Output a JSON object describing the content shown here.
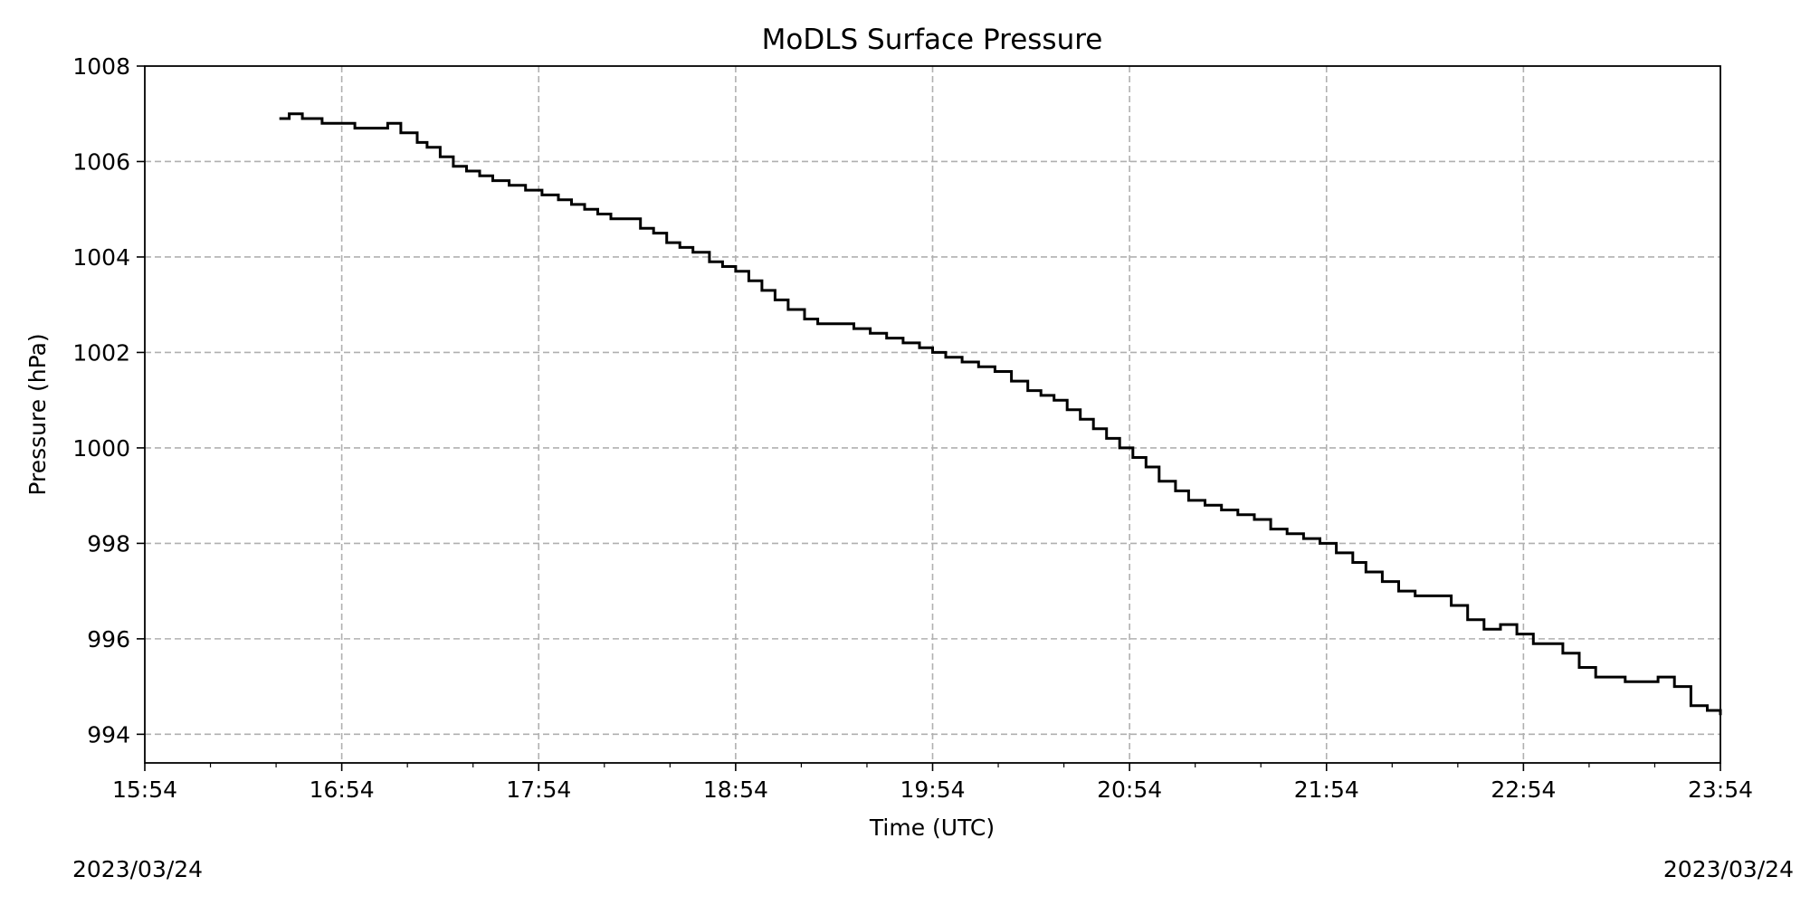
{
  "chart_data": {
    "type": "line",
    "title": "MoDLS Surface Pressure",
    "xlabel": "Time (UTC)",
    "ylabel": "Pressure (hPa)",
    "x_tick_labels": [
      "15:54",
      "16:54",
      "17:54",
      "18:54",
      "19:54",
      "20:54",
      "21:54",
      "22:54",
      "23:54"
    ],
    "y_tick_labels": [
      "994",
      "996",
      "998",
      "1000",
      "1002",
      "1004",
      "1006",
      "1008"
    ],
    "start_date": "2023/03/24",
    "end_date": "2023/03/24",
    "xlim": [
      "15:54",
      "23:54"
    ],
    "ylim": [
      993.4,
      1008
    ],
    "grid": true,
    "colors": {
      "line": "#000000",
      "grid": "#b0b0b0"
    },
    "series": [
      {
        "x": [
          "16:35",
          "16:38",
          "16:42",
          "16:48",
          "16:53",
          "16:58",
          "17:02",
          "17:08",
          "17:12",
          "17:17",
          "17:20",
          "17:24",
          "17:28",
          "17:32",
          "17:36",
          "17:40",
          "17:45",
          "17:50",
          "17:55",
          "18:00",
          "18:04",
          "18:08",
          "18:12",
          "18:16",
          "18:21",
          "18:25",
          "18:29",
          "18:33",
          "18:37",
          "18:41",
          "18:46",
          "18:50",
          "18:54",
          "18:58",
          "19:02",
          "19:06",
          "19:10",
          "19:15",
          "19:19",
          "19:25",
          "19:30",
          "19:35",
          "19:40",
          "19:45",
          "19:50",
          "19:54",
          "19:58",
          "20:03",
          "20:08",
          "20:13",
          "20:18",
          "20:23",
          "20:27",
          "20:31",
          "20:35",
          "20:39",
          "20:43",
          "20:47",
          "20:51",
          "20:55",
          "20:59",
          "21:03",
          "21:08",
          "21:12",
          "21:17",
          "21:22",
          "21:27",
          "21:32",
          "21:37",
          "21:42",
          "21:47",
          "21:52",
          "21:57",
          "22:02",
          "22:06",
          "22:11",
          "22:16",
          "22:21",
          "22:26",
          "22:32",
          "22:37",
          "22:42",
          "22:47",
          "22:52",
          "22:57",
          "23:02",
          "23:06",
          "23:11",
          "23:16",
          "23:20",
          "23:25",
          "23:30",
          "23:35",
          "23:40",
          "23:45",
          "23:50",
          "23:54"
        ],
        "y": [
          1006.9,
          1007.0,
          1006.9,
          1006.8,
          1006.8,
          1006.7,
          1006.7,
          1006.8,
          1006.6,
          1006.4,
          1006.3,
          1006.1,
          1005.9,
          1005.8,
          1005.7,
          1005.6,
          1005.5,
          1005.4,
          1005.3,
          1005.2,
          1005.1,
          1005.0,
          1004.9,
          1004.8,
          1004.8,
          1004.6,
          1004.5,
          1004.3,
          1004.2,
          1004.1,
          1003.9,
          1003.8,
          1003.7,
          1003.5,
          1003.3,
          1003.1,
          1002.9,
          1002.7,
          1002.6,
          1002.6,
          1002.5,
          1002.4,
          1002.3,
          1002.2,
          1002.1,
          1002.0,
          1001.9,
          1001.8,
          1001.7,
          1001.6,
          1001.4,
          1001.2,
          1001.1,
          1001.0,
          1000.8,
          1000.6,
          1000.4,
          1000.2,
          1000.0,
          999.8,
          999.6,
          999.3,
          999.1,
          998.9,
          998.8,
          998.7,
          998.6,
          998.5,
          998.3,
          998.2,
          998.1,
          998.0,
          997.8,
          997.6,
          997.4,
          997.2,
          997.0,
          996.9,
          996.9,
          996.7,
          996.4,
          996.2,
          996.3,
          996.1,
          995.9,
          995.9,
          995.7,
          995.4,
          995.2,
          995.2,
          995.1,
          995.1,
          995.2,
          995.0,
          994.6,
          994.5,
          994.4
        ]
      }
    ]
  }
}
